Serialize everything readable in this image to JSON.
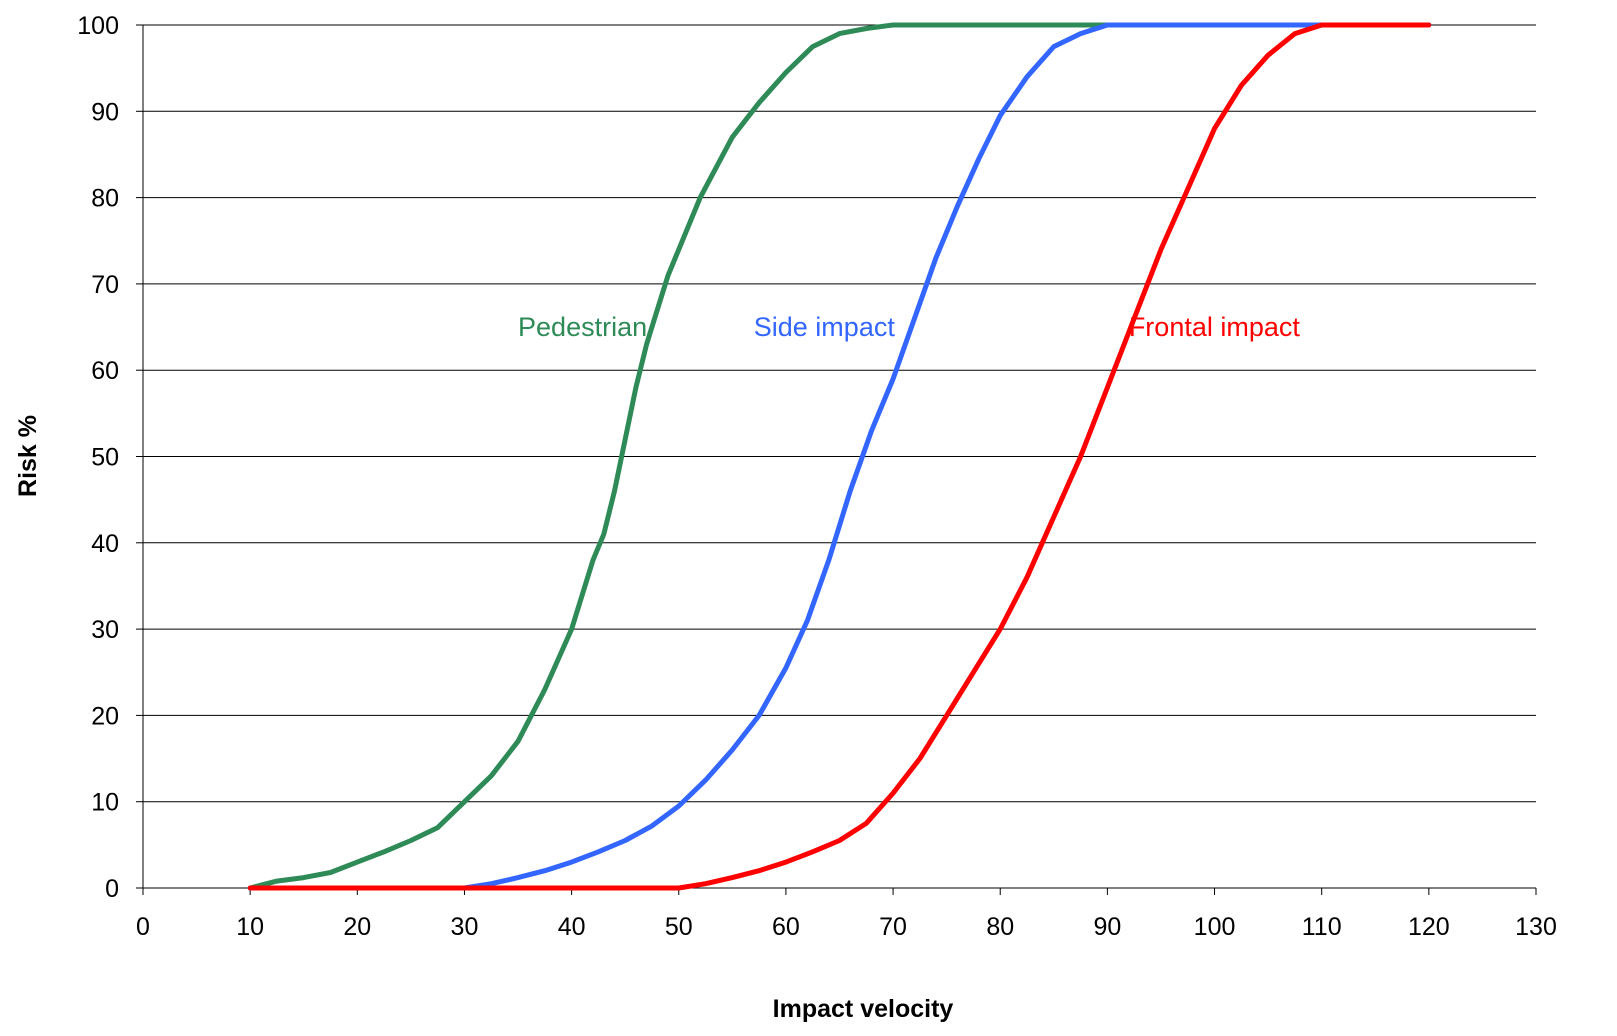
{
  "chart_data": {
    "type": "line",
    "title": "",
    "xlabel": "Impact velocity",
    "ylabel": "Risk  %",
    "xlim": [
      0,
      130
    ],
    "ylim": [
      0,
      100
    ],
    "x_ticks": [
      0,
      10,
      20,
      30,
      40,
      50,
      60,
      70,
      80,
      90,
      100,
      110,
      120,
      130
    ],
    "y_ticks": [
      0,
      10,
      20,
      30,
      40,
      50,
      60,
      70,
      80,
      90,
      100
    ],
    "x_tick_labels": [
      "0",
      "10",
      "20",
      "30",
      "40",
      "50",
      "60",
      "70",
      "80",
      "90",
      "100",
      "110",
      "120",
      "130"
    ],
    "y_tick_labels": [
      "0",
      "10",
      "20",
      "30",
      "40",
      "50",
      "60",
      "70",
      "80",
      "90",
      "100"
    ],
    "grid": "horizontal",
    "legend": "none",
    "series": [
      {
        "name": "Pedestrian",
        "color": "#2e8b57",
        "label_position": [
          35,
          65
        ],
        "points": [
          [
            10,
            0
          ],
          [
            12.5,
            0.8
          ],
          [
            15,
            1.2
          ],
          [
            17.5,
            1.8
          ],
          [
            20,
            3
          ],
          [
            22.5,
            4.2
          ],
          [
            25,
            5.5
          ],
          [
            27.5,
            7
          ],
          [
            30,
            10
          ],
          [
            32.5,
            13
          ],
          [
            35,
            17
          ],
          [
            37.5,
            23
          ],
          [
            40,
            30
          ],
          [
            41,
            34
          ],
          [
            42,
            38
          ],
          [
            43,
            41
          ],
          [
            44,
            46
          ],
          [
            45,
            52
          ],
          [
            46,
            58
          ],
          [
            47,
            63
          ],
          [
            48,
            67
          ],
          [
            49,
            71
          ],
          [
            50,
            74
          ],
          [
            52,
            80
          ],
          [
            55,
            87
          ],
          [
            57.5,
            91
          ],
          [
            60,
            94.5
          ],
          [
            62.5,
            97.5
          ],
          [
            65,
            99
          ],
          [
            67.5,
            99.6
          ],
          [
            70,
            100
          ],
          [
            80,
            100
          ],
          [
            90,
            100
          ],
          [
            100,
            100
          ],
          [
            110,
            100
          ],
          [
            120,
            100
          ]
        ]
      },
      {
        "name": "Side impact",
        "color": "#3366ff",
        "label_position": [
          57,
          65
        ],
        "points": [
          [
            10,
            0
          ],
          [
            20,
            0
          ],
          [
            30,
            0
          ],
          [
            32.5,
            0.5
          ],
          [
            35,
            1.2
          ],
          [
            37.5,
            2
          ],
          [
            40,
            3
          ],
          [
            42.5,
            4.2
          ],
          [
            45,
            5.5
          ],
          [
            47.5,
            7.2
          ],
          [
            50,
            9.5
          ],
          [
            52.5,
            12.5
          ],
          [
            55,
            16
          ],
          [
            57.5,
            20
          ],
          [
            60,
            25.5
          ],
          [
            62,
            31
          ],
          [
            64,
            38
          ],
          [
            66,
            46
          ],
          [
            68,
            53
          ],
          [
            70,
            59
          ],
          [
            72,
            66
          ],
          [
            74,
            73
          ],
          [
            76,
            79
          ],
          [
            78,
            84.5
          ],
          [
            80,
            89.5
          ],
          [
            82.5,
            94
          ],
          [
            85,
            97.5
          ],
          [
            87.5,
            99
          ],
          [
            90,
            100
          ],
          [
            100,
            100
          ],
          [
            110,
            100
          ],
          [
            120,
            100
          ]
        ]
      },
      {
        "name": "Frontal impact",
        "color": "#ff0000",
        "label_position": [
          92,
          65
        ],
        "points": [
          [
            10,
            0
          ],
          [
            20,
            0
          ],
          [
            30,
            0
          ],
          [
            40,
            0
          ],
          [
            45,
            0
          ],
          [
            50,
            0
          ],
          [
            52.5,
            0.5
          ],
          [
            55,
            1.2
          ],
          [
            57.5,
            2
          ],
          [
            60,
            3
          ],
          [
            62.5,
            4.2
          ],
          [
            65,
            5.5
          ],
          [
            67.5,
            7.5
          ],
          [
            70,
            11
          ],
          [
            72.5,
            15
          ],
          [
            75,
            20
          ],
          [
            77.5,
            25
          ],
          [
            80,
            30
          ],
          [
            82.5,
            36
          ],
          [
            85,
            43
          ],
          [
            87.5,
            50
          ],
          [
            90,
            58
          ],
          [
            92.5,
            66
          ],
          [
            95,
            74
          ],
          [
            97.5,
            81
          ],
          [
            100,
            88
          ],
          [
            102.5,
            93
          ],
          [
            105,
            96.5
          ],
          [
            107.5,
            99
          ],
          [
            110,
            100
          ],
          [
            115,
            100
          ],
          [
            120,
            100
          ]
        ]
      }
    ]
  }
}
